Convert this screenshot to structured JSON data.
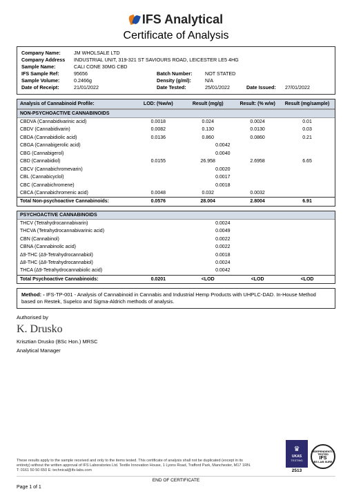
{
  "header": {
    "company": "IFS Analytical",
    "title": "Certificate of Analysis"
  },
  "info": {
    "company_name_label": "Company Name:",
    "company_name": "JM WHOLSALE LTD",
    "company_address_label": "Company Address",
    "company_address": "INDUSTRIAL UNIT, 319-321 ST SAVIOURS ROAD, LEICESTER LE5 4HG",
    "sample_name_label": "Sample Name:",
    "sample_name": "CALI CONE 30MG CBD",
    "sample_ref_label": "IFS Sample Ref:",
    "sample_ref": "95656",
    "batch_label": "Batch Number:",
    "batch": "NOT STATED",
    "volume_label": "Sample Volume:",
    "volume": "0.2466g",
    "density_label": "Density (g/ml):",
    "density": "N/A",
    "receipt_label": "Date of Receipt:",
    "receipt": "21/01/2022",
    "tested_label": "Date Tested:",
    "tested": "25/01/2022",
    "issued_label": "Date Issued:",
    "issued": "27/01/2022"
  },
  "tableHeaders": {
    "title": "Analysis of Cannabinoid Profile:",
    "lod": "LOD: (%w/w)",
    "mgg": "Result (mg/g)",
    "ww": "Result: (% w/w)",
    "mgs": "Result (mg/sample)"
  },
  "sections": {
    "nonpsy": "NON-PSYCHOACTIVE CANNABINOIDS",
    "psy": "PSYCHOACTIVE CANNABINOIDS"
  },
  "nonpsy_rows": [
    {
      "n": "CBDVA (Cannabidivarinic acid)",
      "l": "0.0018",
      "m": "0.024",
      "w": "0.0024",
      "s": "0.01"
    },
    {
      "n": "CBDV (Cannabidivarin)",
      "l": "0.0082",
      "m": "0.130",
      "w": "0.0130",
      "s": "0.03"
    },
    {
      "n": "CBDA (Cannabidiolic acid)",
      "l": "0.0136",
      "m": "0.860",
      "w": "0.0860",
      "s": "0.21"
    },
    {
      "n": "CBGA (Cannabigerolic acid)",
      "l": "0.0042",
      "m": "<LOD",
      "w": "<LOD",
      "s": "<LOD"
    },
    {
      "n": "CBG (Cannabigerol)",
      "l": "0.0040",
      "m": "<LOD",
      "w": "<LOD",
      "s": "<LOD"
    },
    {
      "n": "CBD (Cannabidiol)",
      "l": "0.0155",
      "m": "26.958",
      "w": "2.6958",
      "s": "6.65"
    },
    {
      "n": "CBCV (Cannabichromevarin)",
      "l": "0.0020",
      "m": "<LOD",
      "w": "<LOD",
      "s": "<LOD"
    },
    {
      "n": "CBL (Cannabicyclol)",
      "l": "0.0017",
      "m": "<LOD",
      "w": "<LOD",
      "s": "<LOD"
    },
    {
      "n": "CBC (Cannabichromene)",
      "l": "0.0018",
      "m": "<LOD",
      "w": "<LOD",
      "s": "<LOD"
    },
    {
      "n": "CBCA (Cannabichromenic acid)",
      "l": "0.0048",
      "m": "0.032",
      "w": "0.0032",
      "s": "<LOD"
    }
  ],
  "nonpsy_total": {
    "n": "Total Non-psychoactive Cannabinoids:",
    "l": "0.0576",
    "m": "28.004",
    "w": "2.8004",
    "s": "6.91"
  },
  "psy_rows": [
    {
      "n": "THCV (Tetrahydrocannabivarin)",
      "l": "0.0024",
      "m": "<LOD",
      "w": "<LOD",
      "s": "<LOD"
    },
    {
      "n": "THCVA (Tetrahydrocannabivarinic acid)",
      "l": "0.0049",
      "m": "<LOD",
      "w": "<LOD",
      "s": "<LOD"
    },
    {
      "n": "CBN (Cannabinol)",
      "l": "0.0022",
      "m": "<LOD",
      "w": "<LOD",
      "s": "<LOD"
    },
    {
      "n": "CBNA (Cannabinolic acid)",
      "l": "0.0022",
      "m": "<LOD",
      "w": "<LOD",
      "s": "<LOD"
    },
    {
      "n": "Δ9-THC (Δ9-Tetrahydrocannabiol)",
      "l": "0.0018",
      "m": "<LOD",
      "w": "<LOD",
      "s": "<LOD"
    },
    {
      "n": "Δ8-THC (Δ8-Tetrahydrocannabiol)",
      "l": "0.0024",
      "m": "<LOD",
      "w": "<LOD",
      "s": "<LOD"
    },
    {
      "n": "THCA (Δ9-Tetrahydrocannabiolic acid)",
      "l": "0.0042",
      "m": "<LOD",
      "w": "<LOD",
      "s": "<LOD"
    }
  ],
  "psy_total": {
    "n": "Total Psychoactive Cannabinoids:",
    "l": "0.0201",
    "m": "<LOD",
    "w": "<LOD",
    "s": "<LOD"
  },
  "method": {
    "label": "Method: -",
    "text": "IFS-TP-001 - Analysis of Cannabinoid in Cannabis and Industrial Hemp Products with UHPLC-DAD. In-House Method based on Restek, Supelco and Sigma-Aldrich methods of analysis."
  },
  "auth": {
    "authorised": "Authorised by",
    "name": "Krisztian Drusko (BSc Hon.) MRSC",
    "role": "Analytical Manager"
  },
  "footer": {
    "disclaimer": "These results apply to the sample received and only to the items tested. This certificate of analysis shall not be duplicated (except in its entirety) without the written approval of IFS Laboratories Ltd. Textile Innovation House, 1 Lyons Road, Trafford Park, Manchester, M17 1RN. T: 0161 50 50 650 E: technical@ifs-labs.com",
    "end": "END OF CERTIFICATE",
    "page": "Page 1 of 1",
    "ukas_label": "UKAS",
    "ukas_sub": "TESTING",
    "accreditation": "2513",
    "ifs_badge": "IFS",
    "ifs_ring": "INDEPENDENTLY TESTED"
  },
  "colors": {
    "header_bg": "#d4dce8",
    "border": "#333333",
    "logo_orange": "#e67817",
    "logo_blue": "#1c4da1",
    "ukas_bg": "#2e2a6e"
  }
}
